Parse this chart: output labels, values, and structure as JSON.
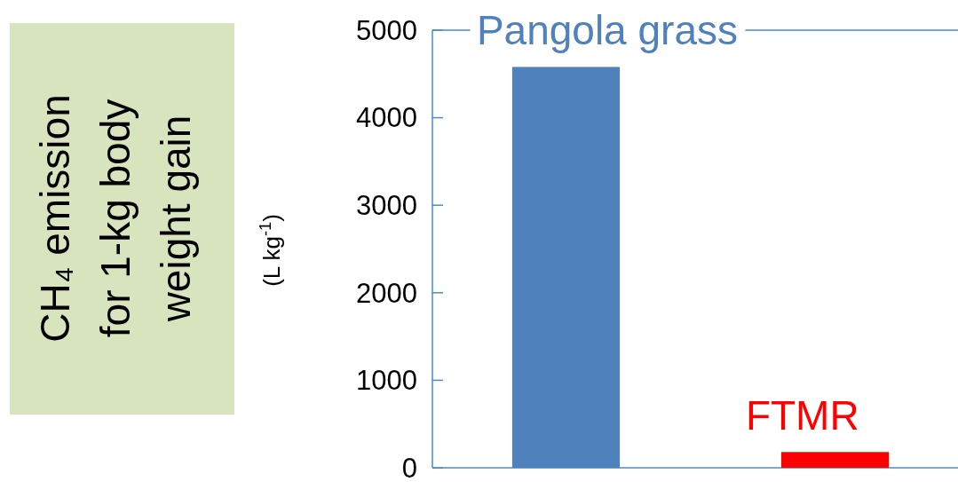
{
  "chart_data": {
    "type": "bar",
    "categories": [
      "Pangola grass",
      "FTMR"
    ],
    "values": [
      4580,
      180
    ],
    "colors": [
      "#4f81bd",
      "#ff0000"
    ],
    "ylabel": "CH₄ emission\nfor 1-kg body\nweight gain\n(L kg$^{-1}$)",
    "ylim": [
      0,
      5000
    ],
    "yticks": [
      0,
      1000,
      2000,
      3000,
      4000,
      5000
    ],
    "grid": false
  }
}
